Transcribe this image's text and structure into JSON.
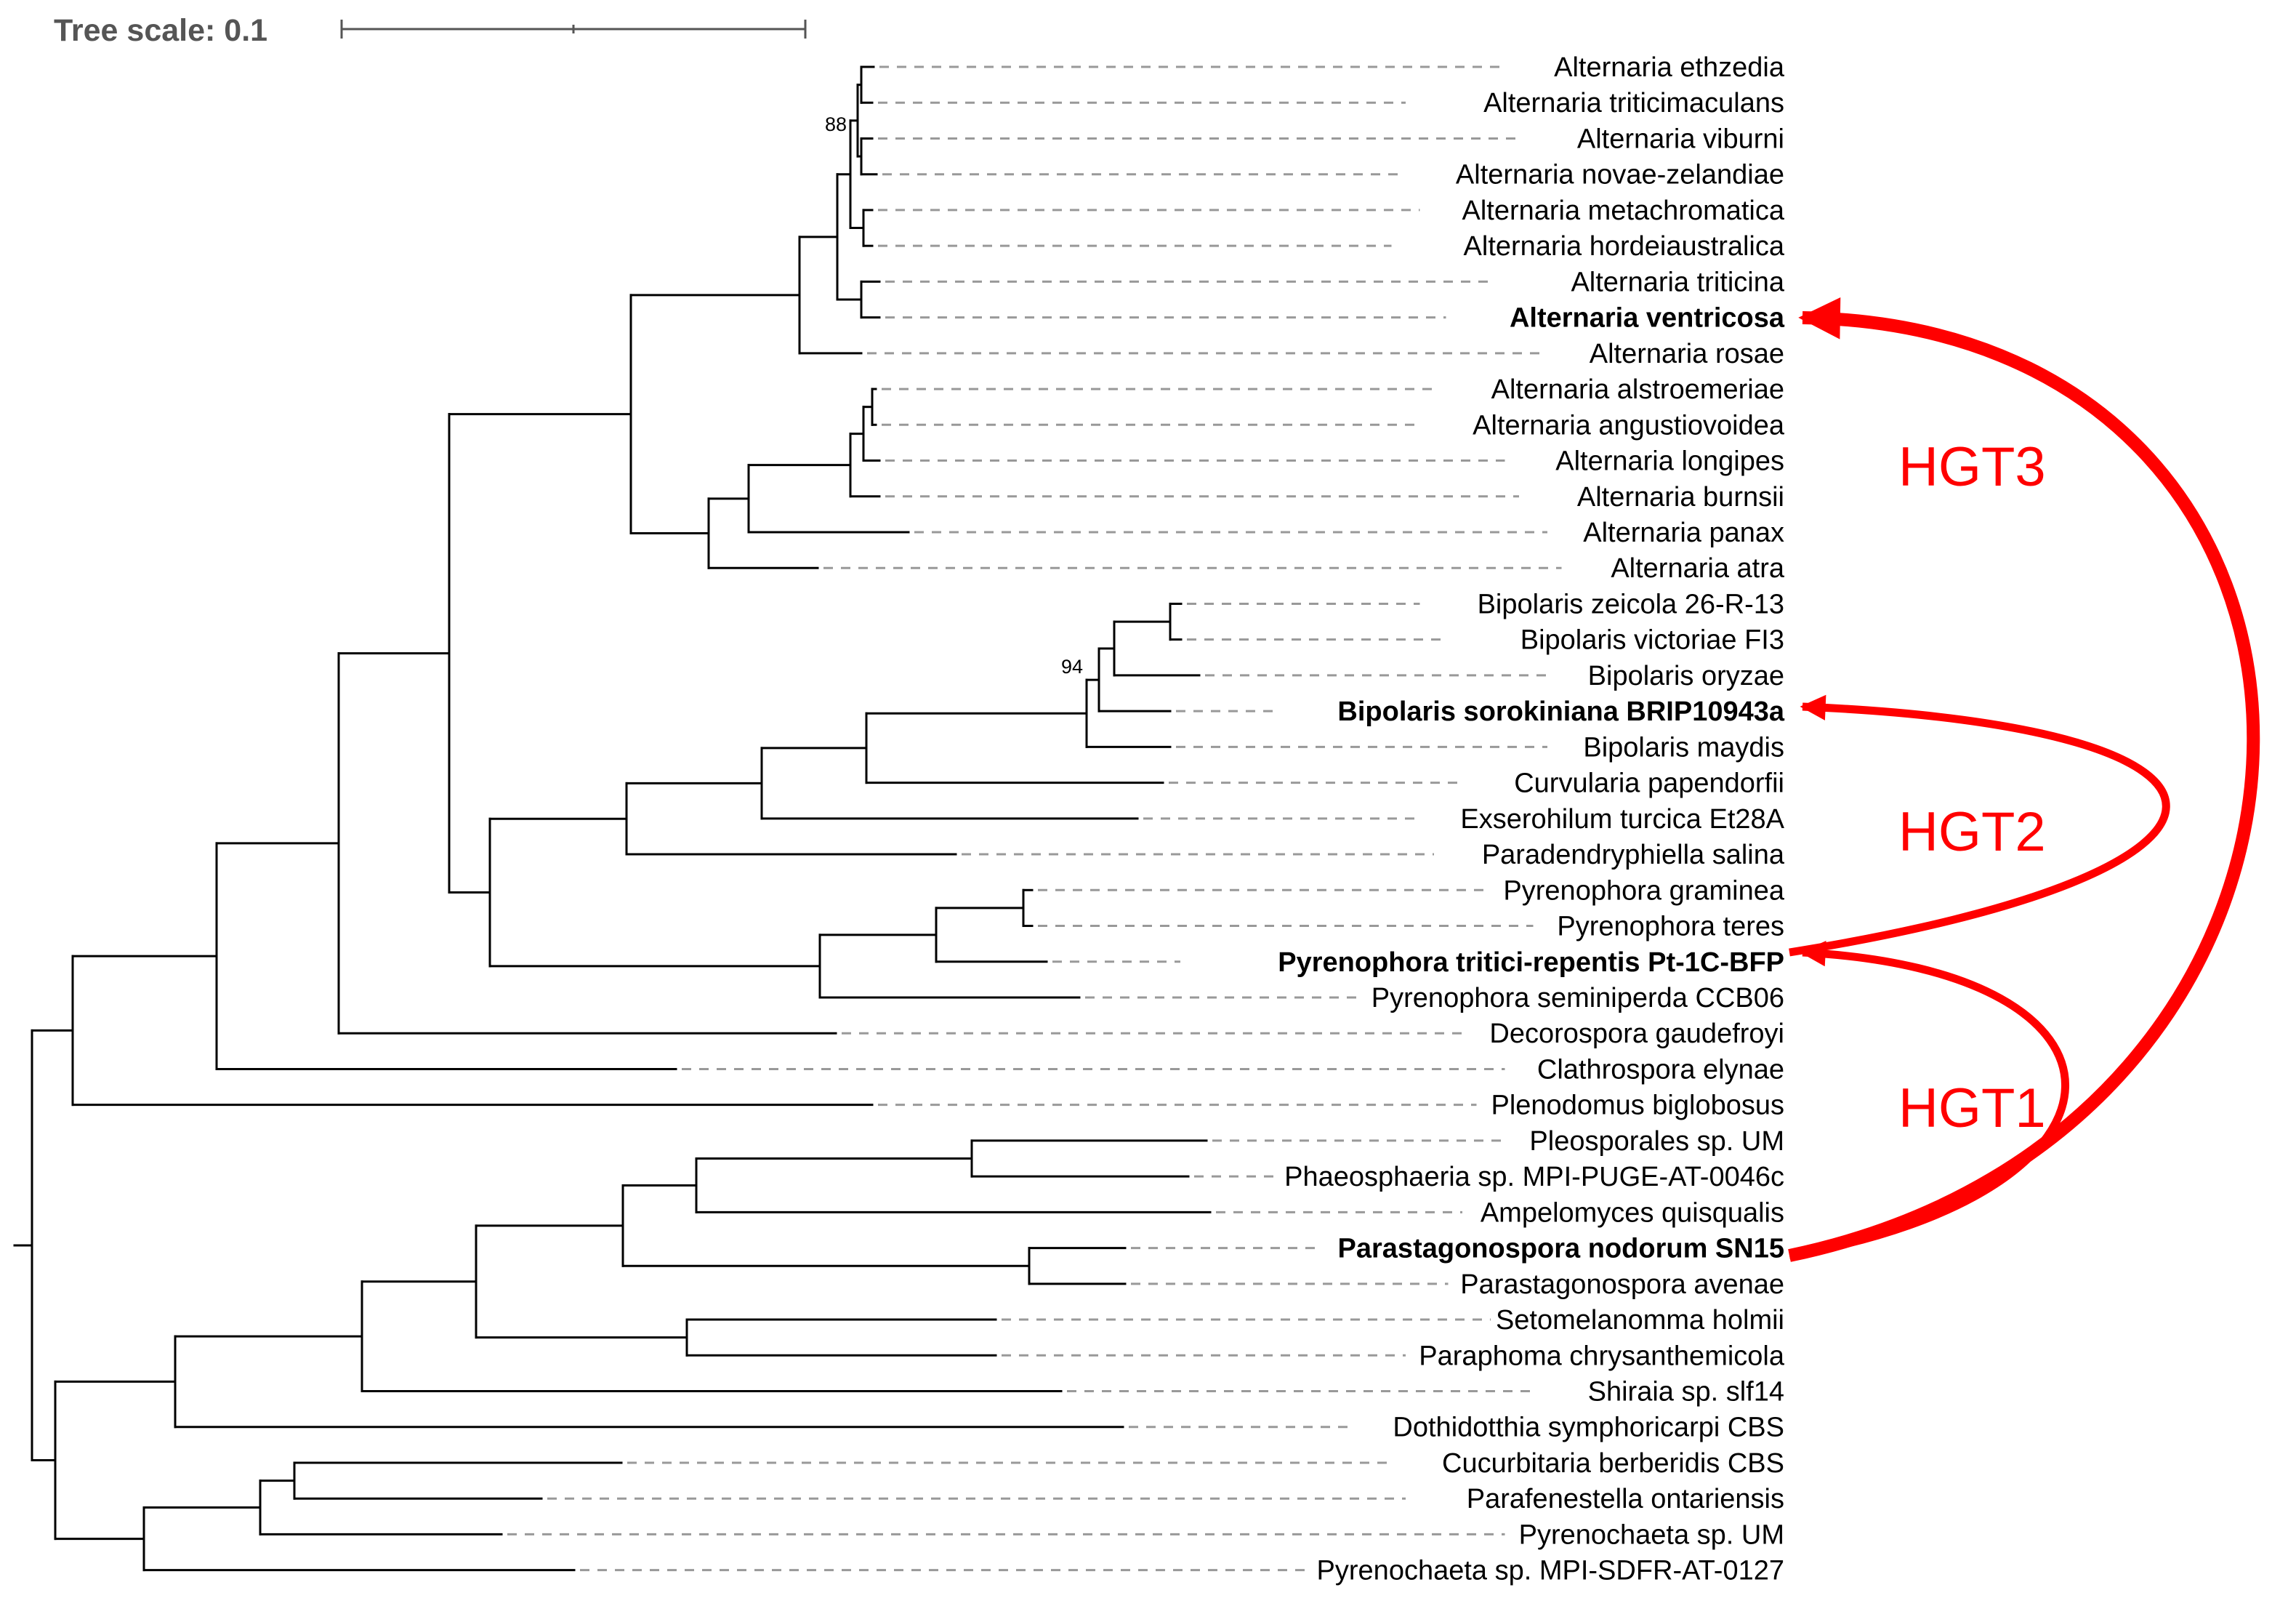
{
  "tree_scale": {
    "label": "Tree scale: 0.1"
  },
  "leaves": [
    {
      "id": "A1",
      "label": "Alternaria ethzedia",
      "bold": false
    },
    {
      "id": "A2",
      "label": "Alternaria triticimaculans",
      "bold": false
    },
    {
      "id": "A3",
      "label": "Alternaria viburni",
      "bold": false
    },
    {
      "id": "A4",
      "label": "Alternaria novae-zelandiae",
      "bold": false
    },
    {
      "id": "A5",
      "label": "Alternaria metachromatica",
      "bold": false
    },
    {
      "id": "A6",
      "label": "Alternaria hordeiaustralica",
      "bold": false
    },
    {
      "id": "A7",
      "label": "Alternaria triticina",
      "bold": false
    },
    {
      "id": "A8",
      "label": "Alternaria ventricosa",
      "bold": true
    },
    {
      "id": "A9",
      "label": "Alternaria rosae",
      "bold": false
    },
    {
      "id": "A10",
      "label": "Alternaria alstroemeriae",
      "bold": false
    },
    {
      "id": "A11",
      "label": "Alternaria angustiovoidea",
      "bold": false
    },
    {
      "id": "A12",
      "label": "Alternaria longipes",
      "bold": false
    },
    {
      "id": "A13",
      "label": "Alternaria burnsii",
      "bold": false
    },
    {
      "id": "A14",
      "label": "Alternaria panax",
      "bold": false
    },
    {
      "id": "A15",
      "label": "Alternaria atra",
      "bold": false
    },
    {
      "id": "B1",
      "label": "Bipolaris zeicola 26-R-13",
      "bold": false
    },
    {
      "id": "B2",
      "label": "Bipolaris victoriae FI3",
      "bold": false
    },
    {
      "id": "B3",
      "label": "Bipolaris oryzae",
      "bold": false
    },
    {
      "id": "B4",
      "label": "Bipolaris sorokiniana BRIP10943a",
      "bold": true
    },
    {
      "id": "B5",
      "label": "Bipolaris maydis",
      "bold": false
    },
    {
      "id": "C1",
      "label": "Curvularia papendorfii",
      "bold": false
    },
    {
      "id": "E1",
      "label": "Exserohilum turcica Et28A",
      "bold": false
    },
    {
      "id": "PS",
      "label": "Paradendryphiella salina",
      "bold": false
    },
    {
      "id": "P1",
      "label": "Pyrenophora graminea",
      "bold": false
    },
    {
      "id": "P2",
      "label": "Pyrenophora teres",
      "bold": false
    },
    {
      "id": "P3",
      "label": "Pyrenophora tritici-repentis Pt-1C-BFP",
      "bold": true
    },
    {
      "id": "P4",
      "label": "Pyrenophora seminiperda CCB06",
      "bold": false
    },
    {
      "id": "DG",
      "label": "Decorospora gaudefroyi",
      "bold": false
    },
    {
      "id": "CE",
      "label": "Clathrospora elynae",
      "bold": false
    },
    {
      "id": "PB",
      "label": "Plenodomus biglobosus",
      "bold": false
    },
    {
      "id": "PU",
      "label": "Pleosporales sp. UM",
      "bold": false
    },
    {
      "id": "PH",
      "label": "Phaeosphaeria sp. MPI-PUGE-AT-0046c",
      "bold": false
    },
    {
      "id": "AQ",
      "label": "Ampelomyces quisqualis",
      "bold": false
    },
    {
      "id": "PN",
      "label": "Parastagonospora nodorum SN15",
      "bold": true
    },
    {
      "id": "PA",
      "label": "Parastagonospora avenae",
      "bold": false
    },
    {
      "id": "SH",
      "label": "Setomelanomma holmii",
      "bold": false
    },
    {
      "id": "PC",
      "label": "Paraphoma chrysanthemicola",
      "bold": false
    },
    {
      "id": "SS",
      "label": "Shiraia sp. slf14",
      "bold": false
    },
    {
      "id": "DS",
      "label": "Dothidotthia symphoricarpi CBS",
      "bold": false
    },
    {
      "id": "CB",
      "label": "Cucurbitaria berberidis CBS",
      "bold": false
    },
    {
      "id": "PO",
      "label": "Parafenestella ontariensis",
      "bold": false
    },
    {
      "id": "PE",
      "label": "Pyrenochaeta sp. UM",
      "bold": false
    },
    {
      "id": "PM",
      "label": "Pyrenochaeta sp. MPI-SDFR-AT-0127",
      "bold": false
    }
  ],
  "support_values": [
    {
      "label": "88"
    },
    {
      "label": "94"
    }
  ],
  "hgt_events": [
    {
      "label": "HGT3",
      "donor": "Parastagonospora nodorum SN15",
      "recipient": "Alternaria ventricosa",
      "color": "#ff0000"
    },
    {
      "label": "HGT2",
      "donor": "Pyrenophora tritici-repentis Pt-1C-BFP",
      "recipient": "Bipolaris sorokiniana BRIP10943a",
      "color": "#ff0000"
    },
    {
      "label": "HGT1",
      "donor": "Parastagonospora nodorum SN15",
      "recipient": "Pyrenophora tritici-repentis Pt-1C-BFP",
      "color": "#ff0000"
    }
  ],
  "colors": {
    "branch": "#000000",
    "guide": "#999999",
    "arrow": "#ff0000",
    "scale": "#555555"
  }
}
